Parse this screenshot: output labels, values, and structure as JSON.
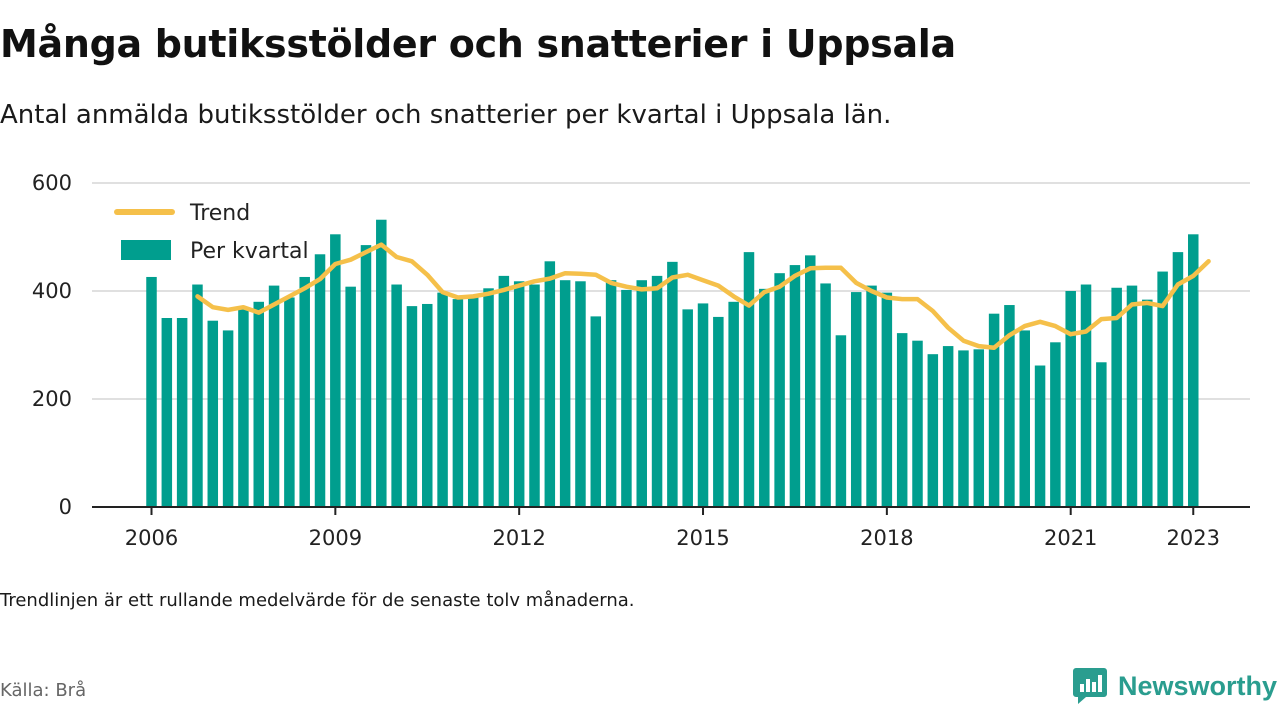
{
  "header": {
    "title": "Många butiksstölder och snatterier i Uppsala",
    "subtitle": "Antal anmälda butiksstölder och snatterier per kvartal i Uppsala län."
  },
  "footer": {
    "note": "Trendlinjen är ett rullande medelvärde för de senaste tolv månaderna.",
    "source": "Källa: Brå",
    "brand": "Newsworthy",
    "brand_icon": "bar-chart-speech-bubble-icon"
  },
  "colors": {
    "bars": "#009e8e",
    "trend": "#f5c04a",
    "grid": "#d6d6d6",
    "axis": "#222222",
    "brand": "#2a9d8f"
  },
  "chart_data": {
    "type": "bar",
    "x_start": 2006,
    "quarters_per_year": 4,
    "ylim": [
      0,
      600
    ],
    "yticks": [
      0,
      200,
      400,
      600
    ],
    "xticks": [
      2006,
      2009,
      2012,
      2015,
      2018,
      2021,
      2023
    ],
    "grid": true,
    "legend_position": "top-left",
    "series": [
      {
        "name": "Per kvartal",
        "type": "bar",
        "values": [
          426,
          350,
          350,
          412,
          345,
          327,
          368,
          380,
          410,
          388,
          426,
          468,
          505,
          408,
          485,
          532,
          412,
          372,
          376,
          397,
          385,
          390,
          405,
          428,
          418,
          412,
          455,
          420,
          418,
          353,
          420,
          402,
          420,
          428,
          454,
          366,
          377,
          352,
          380,
          472,
          404,
          433,
          448,
          466,
          414,
          318,
          398,
          410,
          397,
          322,
          308,
          283,
          298,
          290,
          292,
          358,
          374,
          327,
          262,
          305,
          400,
          412,
          268,
          406,
          410,
          384,
          436,
          472,
          505
        ]
      },
      {
        "name": "Trend",
        "type": "line",
        "start_index": 3,
        "values": [
          390,
          370,
          365,
          370,
          360,
          375,
          390,
          405,
          422,
          450,
          458,
          472,
          486,
          463,
          455,
          430,
          398,
          388,
          390,
          395,
          402,
          410,
          418,
          423,
          433,
          432,
          430,
          415,
          408,
          403,
          405,
          425,
          430,
          420,
          410,
          390,
          373,
          398,
          408,
          428,
          442,
          443,
          443,
          415,
          400,
          388,
          385,
          385,
          363,
          332,
          308,
          298,
          295,
          318,
          335,
          343,
          335,
          320,
          325,
          348,
          350,
          375,
          378,
          372,
          412,
          428,
          455
        ]
      }
    ]
  }
}
